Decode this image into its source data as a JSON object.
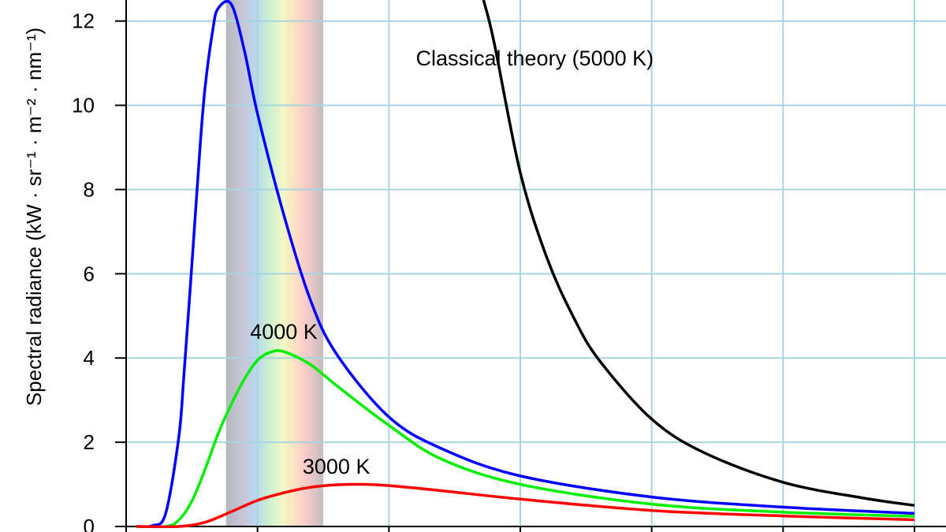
{
  "chart_data": {
    "type": "line",
    "title": "",
    "xlabel": "",
    "ylabel": "Spectral radiance (kW · sr⁻¹ · m⁻² · nm⁻¹)",
    "xlim": [
      0,
      3000
    ],
    "ylim": [
      0,
      12.5
    ],
    "y_ticks": [
      0,
      2,
      4,
      6,
      8,
      10,
      12
    ],
    "y_tick_labels": [
      "0",
      "2",
      "4",
      "6",
      "8",
      "10",
      "12"
    ],
    "x_ticks": [
      0,
      500,
      1000,
      1500,
      2000,
      2500,
      3000
    ],
    "grid": true,
    "visible_band": {
      "from_x": 380,
      "to_x": 750
    },
    "series": [
      {
        "key": "t5000",
        "color": "#0000ff",
        "x": [
          40,
          100,
          150,
          200,
          220,
          250,
          280,
          300,
          330,
          350,
          400,
          450,
          500,
          600,
          700,
          800,
          1000,
          1200,
          1500,
          2000,
          2500,
          3000
        ],
        "values": [
          0.0,
          0.02,
          0.3,
          2.1,
          3.6,
          6.2,
          8.9,
          10.4,
          11.8,
          12.3,
          12.4,
          11.3,
          9.8,
          7.4,
          5.4,
          4.1,
          2.6,
          1.85,
          1.2,
          0.7,
          0.46,
          0.31
        ]
      },
      {
        "key": "t4000",
        "color": "#00ee00",
        "x": [
          40,
          150,
          200,
          250,
          300,
          350,
          400,
          450,
          500,
          550,
          600,
          700,
          800,
          1000,
          1200,
          1500,
          2000,
          2500,
          3000
        ],
        "values": [
          0.0,
          0.0,
          0.15,
          0.6,
          1.35,
          2.2,
          2.9,
          3.5,
          3.95,
          4.14,
          4.15,
          3.85,
          3.35,
          2.4,
          1.6,
          1.0,
          0.53,
          0.34,
          0.24
        ]
      },
      {
        "key": "t3000",
        "color": "#ff0000",
        "x": [
          40,
          200,
          300,
          400,
          500,
          600,
          700,
          800,
          900,
          1000,
          1200,
          1500,
          2000,
          2500,
          3000
        ],
        "values": [
          0.0,
          0.0,
          0.1,
          0.35,
          0.62,
          0.8,
          0.93,
          0.99,
          1.0,
          0.97,
          0.85,
          0.65,
          0.38,
          0.25,
          0.16
        ]
      },
      {
        "key": "classical",
        "color": "#000000",
        "x": [
          1360,
          1400,
          1500,
          1600,
          1700,
          1800,
          2000,
          2200,
          2500,
          2800,
          3000
        ],
        "values": [
          12.5,
          11.5,
          8.4,
          6.4,
          5.0,
          3.95,
          2.55,
          1.75,
          1.05,
          0.68,
          0.5
        ]
      }
    ],
    "annotations": [
      {
        "text": "Classical theory (5000 K)",
        "x": 1555,
        "y": 10.95
      },
      {
        "text": "4000 K",
        "x": 600,
        "y": 4.45
      },
      {
        "text": "3000 K",
        "x": 800,
        "y": 1.25
      }
    ]
  }
}
